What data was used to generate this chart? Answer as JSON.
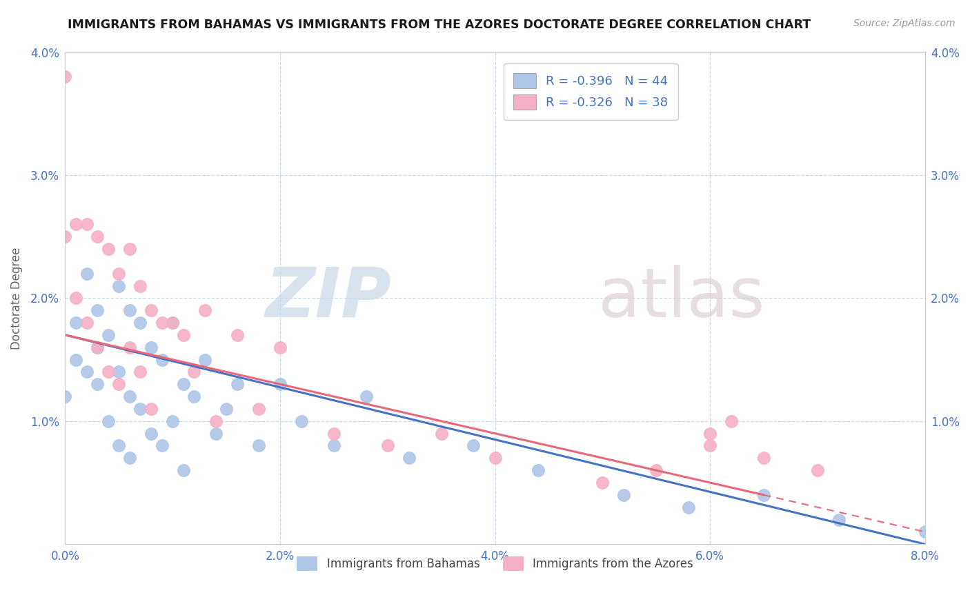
{
  "title": "IMMIGRANTS FROM BAHAMAS VS IMMIGRANTS FROM THE AZORES DOCTORATE DEGREE CORRELATION CHART",
  "source": "Source: ZipAtlas.com",
  "ylabel": "Doctorate Degree",
  "xlim": [
    0.0,
    0.08
  ],
  "ylim": [
    0.0,
    0.04
  ],
  "legend_blue_label": "Immigrants from Bahamas",
  "legend_pink_label": "Immigrants from the Azores",
  "R_blue": -0.396,
  "N_blue": 44,
  "R_pink": -0.326,
  "N_pink": 38,
  "blue_scatter_color": "#aec6e8",
  "pink_scatter_color": "#f4b0c4",
  "blue_line_color": "#4472c4",
  "pink_line_color": "#e8687a",
  "grid_color": "#c8d8e8",
  "blue_x": [
    0.0,
    0.001,
    0.001,
    0.002,
    0.002,
    0.003,
    0.003,
    0.003,
    0.004,
    0.004,
    0.005,
    0.005,
    0.005,
    0.006,
    0.006,
    0.006,
    0.007,
    0.007,
    0.008,
    0.008,
    0.009,
    0.009,
    0.01,
    0.01,
    0.011,
    0.011,
    0.012,
    0.013,
    0.014,
    0.015,
    0.016,
    0.018,
    0.02,
    0.022,
    0.025,
    0.028,
    0.032,
    0.038,
    0.044,
    0.052,
    0.058,
    0.065,
    0.072,
    0.08
  ],
  "blue_y": [
    0.012,
    0.018,
    0.015,
    0.022,
    0.014,
    0.019,
    0.016,
    0.013,
    0.017,
    0.01,
    0.021,
    0.014,
    0.008,
    0.019,
    0.012,
    0.007,
    0.018,
    0.011,
    0.016,
    0.009,
    0.015,
    0.008,
    0.018,
    0.01,
    0.013,
    0.006,
    0.012,
    0.015,
    0.009,
    0.011,
    0.013,
    0.008,
    0.013,
    0.01,
    0.008,
    0.012,
    0.007,
    0.008,
    0.006,
    0.004,
    0.003,
    0.004,
    0.002,
    0.001
  ],
  "pink_x": [
    0.0,
    0.0,
    0.001,
    0.001,
    0.002,
    0.002,
    0.003,
    0.003,
    0.004,
    0.004,
    0.005,
    0.005,
    0.006,
    0.006,
    0.007,
    0.007,
    0.008,
    0.008,
    0.009,
    0.01,
    0.011,
    0.012,
    0.013,
    0.014,
    0.016,
    0.018,
    0.02,
    0.025,
    0.03,
    0.035,
    0.04,
    0.05,
    0.06,
    0.065,
    0.06,
    0.055,
    0.062,
    0.07
  ],
  "pink_y": [
    0.038,
    0.025,
    0.026,
    0.02,
    0.026,
    0.018,
    0.025,
    0.016,
    0.024,
    0.014,
    0.022,
    0.013,
    0.024,
    0.016,
    0.021,
    0.014,
    0.019,
    0.011,
    0.018,
    0.018,
    0.017,
    0.014,
    0.019,
    0.01,
    0.017,
    0.011,
    0.016,
    0.009,
    0.008,
    0.009,
    0.007,
    0.005,
    0.009,
    0.007,
    0.008,
    0.006,
    0.01,
    0.006
  ],
  "blue_reg": [
    0.0,
    0.08,
    0.017,
    0.0
  ],
  "pink_reg": [
    0.0,
    0.065,
    0.017,
    0.004
  ],
  "pink_reg_dash": [
    0.065,
    0.08,
    0.004,
    0.001
  ]
}
